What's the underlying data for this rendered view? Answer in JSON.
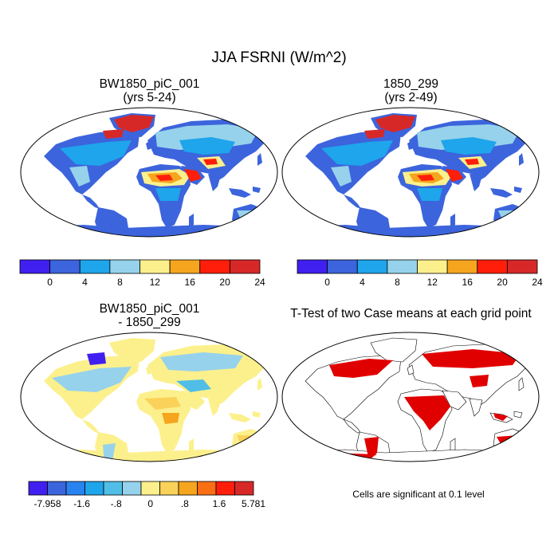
{
  "figure": {
    "title": "JJA FSRNI (W/m^2)",
    "panels": [
      {
        "id": "p1",
        "line1": "BW1850_piC_001",
        "line2": "(yrs 5-24)"
      },
      {
        "id": "p2",
        "line1": "1850_299",
        "line2": "(yrs 2-49)"
      },
      {
        "id": "p3",
        "line1": "BW1850_piC_001",
        "line2": "- 1850_299"
      },
      {
        "id": "p4",
        "line1": "T-Test of two Case means at each grid point",
        "line2": ""
      }
    ],
    "significance_note": "Cells are significant at 0.1 level"
  },
  "colorbars": {
    "abs": {
      "colors": [
        "#4020f0",
        "#3c64dc",
        "#1ea5eb",
        "#96d2eb",
        "#fcf08c",
        "#f5a51e",
        "#ff1e0a",
        "#d72828"
      ],
      "labels": [
        "0",
        "4",
        "8",
        "12",
        "16",
        "20",
        "24"
      ]
    },
    "diff": {
      "colors": [
        "#4020f0",
        "#3c64dc",
        "#2882f0",
        "#1ea5eb",
        "#50bee6",
        "#96d2eb",
        "#fcf08c",
        "#fad25a",
        "#f5a51e",
        "#fa6e14",
        "#ff1e0a",
        "#d72828"
      ],
      "labels": [
        "-7.958",
        "-1.6",
        "-.8",
        "0",
        ".8",
        "1.6",
        "5.781"
      ]
    }
  }
}
